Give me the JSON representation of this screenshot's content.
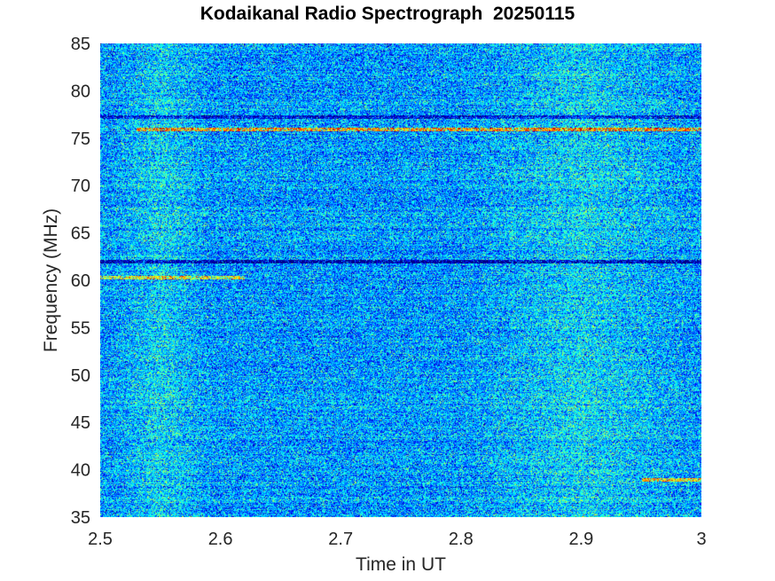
{
  "chart_data": {
    "type": "heatmap",
    "title": "Kodaikanal Radio Spectrograph  20250115",
    "xlabel": "Time in UT",
    "ylabel": "Frequency (MHz)",
    "xlim": [
      2.5,
      3.0
    ],
    "ylim": [
      35,
      85
    ],
    "x_ticks": [
      2.5,
      2.6,
      2.7,
      2.8,
      2.9,
      3.0
    ],
    "x_tick_labels": [
      "2.5",
      "2.6",
      "2.7",
      "2.8",
      "2.9",
      "3"
    ],
    "y_ticks": [
      35,
      40,
      45,
      50,
      55,
      60,
      65,
      70,
      75,
      80,
      85
    ],
    "y_tick_labels": [
      "35",
      "40",
      "45",
      "50",
      "55",
      "60",
      "65",
      "70",
      "75",
      "80",
      "85"
    ],
    "colormap": "jet",
    "grid": false,
    "legend": "none",
    "background_level": 0.28,
    "brighter_time_ranges_ut": [
      [
        2.52,
        2.58
      ],
      [
        2.83,
        2.97
      ]
    ],
    "features": [
      {
        "kind": "bright_line",
        "freq_mhz": 76.0,
        "x_range": [
          2.53,
          3.0
        ],
        "intensity": 0.45
      },
      {
        "kind": "dark_line",
        "freq_mhz": 62.0,
        "x_range": [
          2.5,
          3.0
        ],
        "intensity": -0.3
      },
      {
        "kind": "bright_line",
        "freq_mhz": 60.3,
        "x_range": [
          2.5,
          2.62
        ],
        "intensity": 0.35
      },
      {
        "kind": "bright_line",
        "freq_mhz": 39.0,
        "x_range": [
          2.95,
          3.0
        ],
        "intensity": 0.4
      },
      {
        "kind": "dark_line",
        "freq_mhz": 77.3,
        "x_range": [
          2.5,
          3.0
        ],
        "intensity": -0.2
      }
    ]
  }
}
